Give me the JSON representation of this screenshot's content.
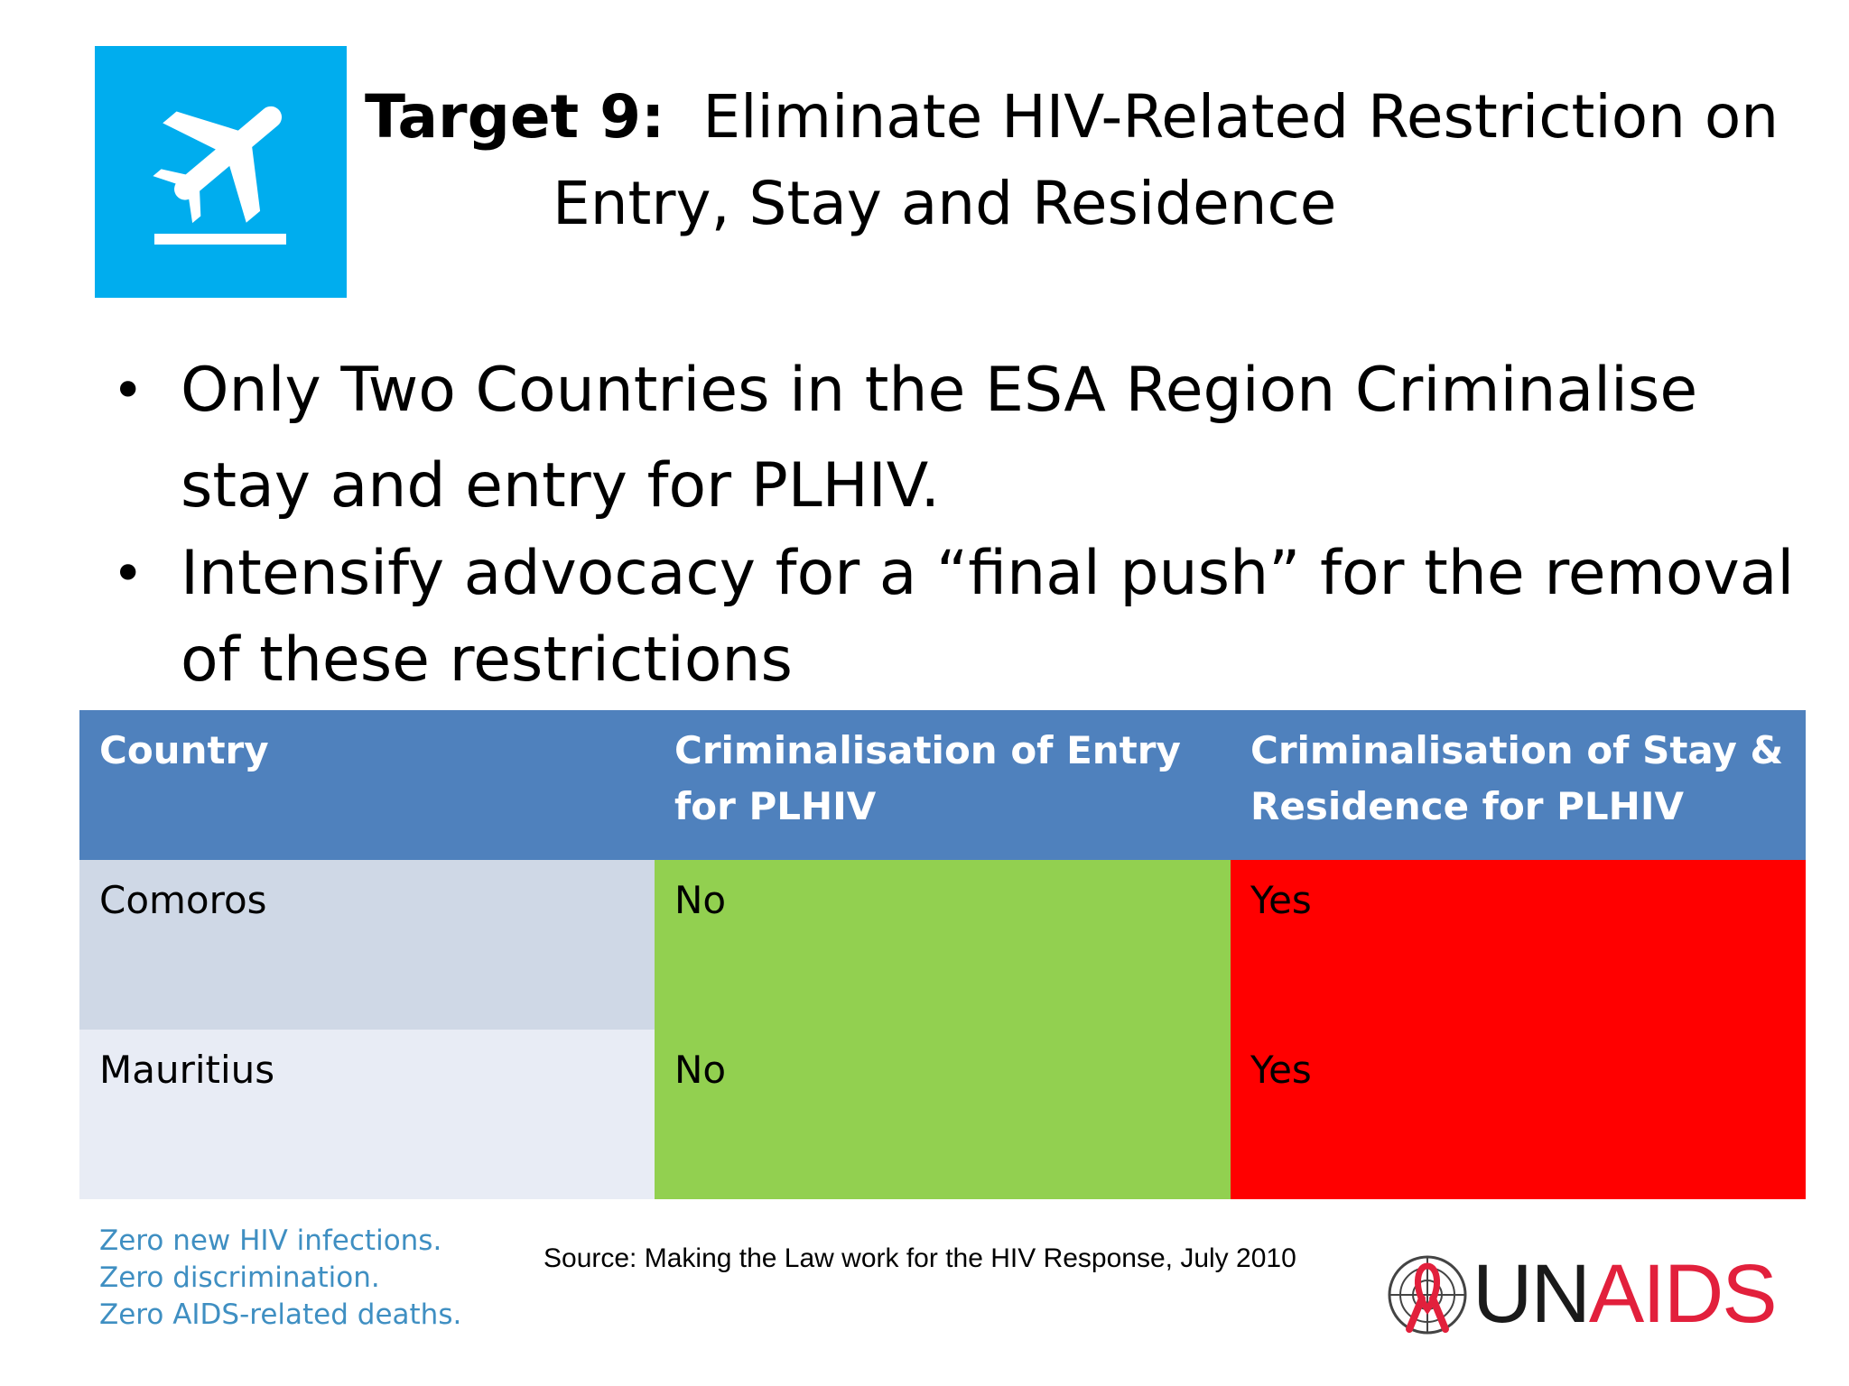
{
  "icon": {
    "name": "airplane-departure-icon",
    "background": "#00adee"
  },
  "title": {
    "bold": "Target 9:",
    "line1": "Eliminate HIV-Related Restriction on",
    "line2": "Entry, Stay and Residence"
  },
  "bullets": [
    {
      "line1": "Only Two Countries in the ESA Region Criminalise",
      "line2": "stay and entry for PLHIV."
    },
    {
      "line1": "Intensify advocacy for a “final push” for the removal",
      "line2": "of these restrictions"
    }
  ],
  "table": {
    "headers": [
      "Country",
      "Criminalisation of Entry for PLHIV",
      "Criminalisation of Stay & Residence for PLHIV"
    ],
    "rows": [
      {
        "country": "Comoros",
        "entry": "No",
        "stay": "Yes"
      },
      {
        "country": "Mauritius",
        "entry": "No",
        "stay": "Yes"
      }
    ],
    "colors": {
      "header": "#4f81bd",
      "no": "#92d050",
      "yes": "#ff0000"
    }
  },
  "footer": {
    "slogan": [
      "Zero new HIV infections.",
      "Zero discrimination.",
      "Zero AIDS-related deaths."
    ],
    "source": "Source: Making the Law work for the HIV Response, July 2010",
    "logo": {
      "un": "UN",
      "aids": "AIDS"
    }
  }
}
